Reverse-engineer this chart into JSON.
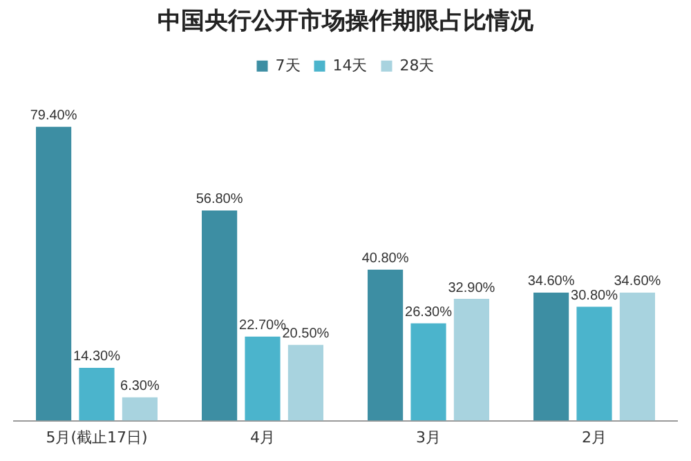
{
  "chart_data": {
    "type": "bar",
    "title": "中国央行公开市场操作期限占比情况",
    "categories": [
      "5月(截止17日)",
      "4月",
      "3月",
      "2月"
    ],
    "series": [
      {
        "name": "7天",
        "color": "#3d8ea3",
        "values": [
          79.4,
          56.8,
          40.8,
          34.6
        ],
        "value_labels": [
          "79.40%",
          "56.80%",
          "40.80%",
          "34.60%"
        ]
      },
      {
        "name": "14天",
        "color": "#4bb4cc",
        "values": [
          14.3,
          22.7,
          26.3,
          30.8
        ],
        "value_labels": [
          "14.30%",
          "22.70%",
          "26.30%",
          "30.80%"
        ]
      },
      {
        "name": "28天",
        "color": "#a8d3df",
        "values": [
          6.3,
          20.5,
          32.9,
          34.6
        ],
        "value_labels": [
          "6.30%",
          "20.50%",
          "32.90%",
          "34.60%"
        ]
      }
    ],
    "legend": "top",
    "grid": false,
    "tick_labels": "x"
  }
}
